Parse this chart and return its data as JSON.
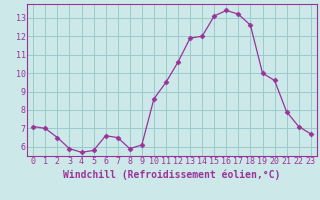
{
  "x": [
    0,
    1,
    2,
    3,
    4,
    5,
    6,
    7,
    8,
    9,
    10,
    11,
    12,
    13,
    14,
    15,
    16,
    17,
    18,
    19,
    20,
    21,
    22,
    23
  ],
  "y": [
    7.1,
    7.0,
    6.5,
    5.9,
    5.7,
    5.8,
    6.6,
    6.5,
    5.9,
    6.1,
    8.6,
    9.5,
    10.6,
    11.9,
    12.0,
    13.1,
    13.4,
    13.2,
    12.6,
    10.0,
    9.6,
    7.9,
    7.1,
    6.7
  ],
  "line_color": "#993399",
  "marker": "D",
  "marker_size": 2.5,
  "bg_color": "#cce8e8",
  "grid_color": "#99cccc",
  "xlabel": "Windchill (Refroidissement éolien,°C)",
  "xlabel_color": "#993399",
  "tick_color": "#993399",
  "spine_color": "#993399",
  "ylim": [
    5.5,
    13.75
  ],
  "xlim": [
    -0.5,
    23.5
  ],
  "yticks": [
    6,
    7,
    8,
    9,
    10,
    11,
    12,
    13
  ],
  "xticks": [
    0,
    1,
    2,
    3,
    4,
    5,
    6,
    7,
    8,
    9,
    10,
    11,
    12,
    13,
    14,
    15,
    16,
    17,
    18,
    19,
    20,
    21,
    22,
    23
  ],
  "tick_fontsize": 6.0,
  "xlabel_fontsize": 7.0
}
